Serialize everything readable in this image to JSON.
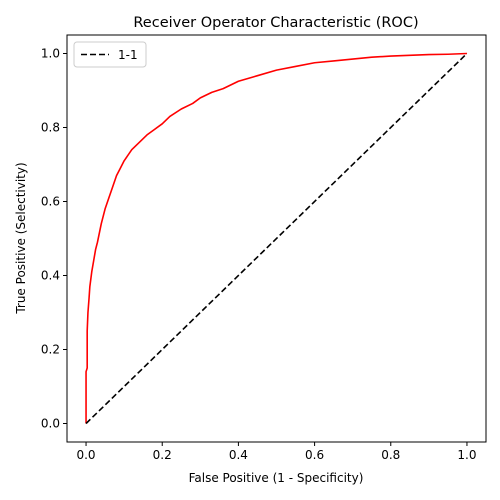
{
  "chart_data": {
    "type": "line",
    "title": "Receiver Operator Characteristic (ROC)",
    "xlabel": "False Positive (1 - Specificity)",
    "ylabel": "True Positive (Selectivity)",
    "xlim": [
      -0.05,
      1.05
    ],
    "ylim": [
      -0.05,
      1.05
    ],
    "xticks": [
      0.0,
      0.2,
      0.4,
      0.6,
      0.8,
      1.0
    ],
    "xtick_labels": [
      "0.0",
      "0.2",
      "0.4",
      "0.6",
      "0.8",
      "1.0"
    ],
    "yticks": [
      0.0,
      0.2,
      0.4,
      0.6,
      0.8,
      1.0
    ],
    "ytick_labels": [
      "0.0",
      "0.2",
      "0.4",
      "0.6",
      "0.8",
      "1.0"
    ],
    "grid": false,
    "legend": {
      "position": "top-left",
      "entries": [
        "1-1"
      ]
    },
    "series": [
      {
        "color": "#ff0000",
        "style": "solid",
        "x": [
          0.0,
          0.0,
          0.003,
          0.003,
          0.005,
          0.008,
          0.01,
          0.015,
          0.02,
          0.025,
          0.03,
          0.04,
          0.05,
          0.06,
          0.07,
          0.08,
          0.09,
          0.1,
          0.12,
          0.14,
          0.16,
          0.18,
          0.2,
          0.22,
          0.25,
          0.28,
          0.3,
          0.33,
          0.36,
          0.4,
          0.45,
          0.5,
          0.55,
          0.6,
          0.65,
          0.7,
          0.75,
          0.8,
          0.85,
          0.9,
          0.95,
          1.0
        ],
        "y": [
          0.0,
          0.14,
          0.15,
          0.25,
          0.3,
          0.34,
          0.37,
          0.41,
          0.44,
          0.47,
          0.49,
          0.54,
          0.58,
          0.61,
          0.64,
          0.67,
          0.69,
          0.71,
          0.74,
          0.76,
          0.78,
          0.795,
          0.81,
          0.83,
          0.85,
          0.865,
          0.88,
          0.895,
          0.905,
          0.925,
          0.94,
          0.955,
          0.965,
          0.975,
          0.98,
          0.985,
          0.99,
          0.993,
          0.995,
          0.997,
          0.998,
          1.0
        ]
      },
      {
        "name": "1-1",
        "color": "#000000",
        "style": "dashed",
        "x": [
          0.0,
          1.0
        ],
        "y": [
          0.0,
          1.0
        ]
      }
    ]
  }
}
